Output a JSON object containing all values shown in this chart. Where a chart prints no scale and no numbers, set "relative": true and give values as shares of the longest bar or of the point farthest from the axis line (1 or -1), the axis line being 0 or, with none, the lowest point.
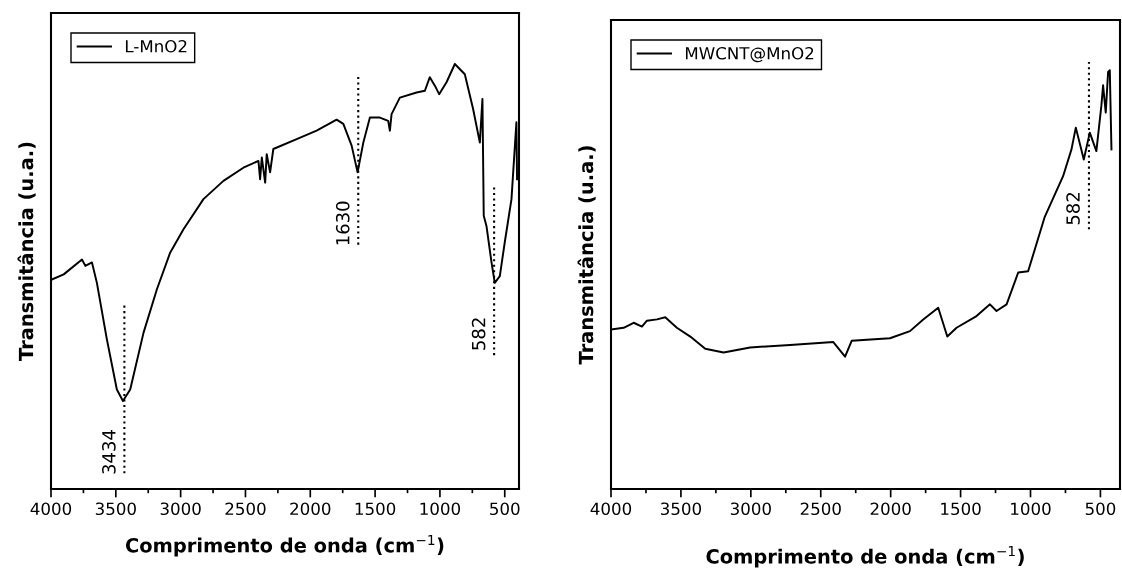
{
  "chart_data": [
    {
      "type": "line",
      "relative": true,
      "xlabel": "Comprimento de onda (cm$^{−1}$)",
      "ylabel": "Transmitância (u.a.)",
      "xlim": [
        4000,
        390
      ],
      "xticks": [
        4000,
        3500,
        3000,
        2500,
        2000,
        1500,
        1000,
        500
      ],
      "tick_labels": "x",
      "legend": "top left",
      "grid": false,
      "marker": "none",
      "line_style": "solid",
      "x": [
        4000,
        3902,
        3761,
        3735,
        3684,
        3646,
        3569,
        3492,
        3445,
        3389,
        3286,
        3183,
        3081,
        2978,
        2824,
        2670,
        2516,
        2400,
        2387,
        2374,
        2348,
        2336,
        2310,
        2285,
        2105,
        1951,
        1797,
        1745,
        1681,
        1635,
        1591,
        1540,
        1463,
        1399,
        1386,
        1373,
        1309,
        1180,
        1116,
        1078,
        1039,
        1006,
        949,
        885,
        808,
        744,
        692,
        672,
        662,
        641,
        602,
        577,
        538,
        500,
        448,
        410,
        405
      ],
      "series": [
        {
          "name": "L-MnO2",
          "color": "#000000",
          "values": [
            0.492,
            0.505,
            0.54,
            0.525,
            0.533,
            0.485,
            0.352,
            0.234,
            0.207,
            0.234,
            0.368,
            0.47,
            0.556,
            0.611,
            0.682,
            0.725,
            0.756,
            0.772,
            0.729,
            0.78,
            0.721,
            0.788,
            0.745,
            0.8,
            0.823,
            0.843,
            0.869,
            0.859,
            0.808,
            0.745,
            0.815,
            0.874,
            0.874,
            0.866,
            0.843,
            0.882,
            0.921,
            0.933,
            0.937,
            0.969,
            0.949,
            0.929,
            0.957,
            1.0,
            0.976,
            0.894,
            0.815,
            0.918,
            0.643,
            0.619,
            0.533,
            0.485,
            0.501,
            0.58,
            0.682,
            0.863,
            0.729
          ]
        }
      ],
      "annotations": [
        {
          "text": "3434",
          "x": 3434,
          "y": 0.207
        },
        {
          "text": "1630",
          "x": 1630,
          "y": 0.745
        },
        {
          "text": "582",
          "x": 582,
          "y": 0.485
        }
      ]
    },
    {
      "type": "line",
      "relative": true,
      "xlabel": "Comprimento de onda (cm$^{−1}$)",
      "ylabel": "Transmitância (u.a.)",
      "xlim": [
        4000,
        360
      ],
      "xticks": [
        4000,
        3500,
        3000,
        2500,
        2000,
        1500,
        1000,
        500
      ],
      "tick_labels": "x",
      "legend": "top left",
      "grid": false,
      "marker": "none",
      "line_style": "solid",
      "x": [
        4000,
        3910,
        3838,
        3779,
        3743,
        3671,
        3612,
        3529,
        3433,
        3326,
        3195,
        3005,
        2719,
        2410,
        2374,
        2326,
        2279,
        2005,
        1862,
        1767,
        1660,
        1595,
        1529,
        1386,
        1290,
        1243,
        1171,
        1088,
        1017,
        898,
        767,
        707,
        676,
        619,
        576,
        529,
        493,
        481,
        462,
        445,
        433,
        421
      ],
      "series": [
        {
          "name": "MWCNT@MnO2",
          "color": "#000000",
          "values": [
            0.381,
            0.385,
            0.397,
            0.388,
            0.402,
            0.405,
            0.41,
            0.385,
            0.364,
            0.335,
            0.326,
            0.338,
            0.344,
            0.351,
            0.336,
            0.316,
            0.354,
            0.36,
            0.377,
            0.405,
            0.433,
            0.364,
            0.385,
            0.413,
            0.441,
            0.425,
            0.441,
            0.517,
            0.52,
            0.65,
            0.747,
            0.811,
            0.863,
            0.787,
            0.851,
            0.807,
            0.916,
            0.964,
            0.899,
            0.996,
            1.0,
            0.811
          ]
        }
      ],
      "annotations": [
        {
          "text": "582",
          "x": 582,
          "y": 0.79
        }
      ]
    }
  ]
}
